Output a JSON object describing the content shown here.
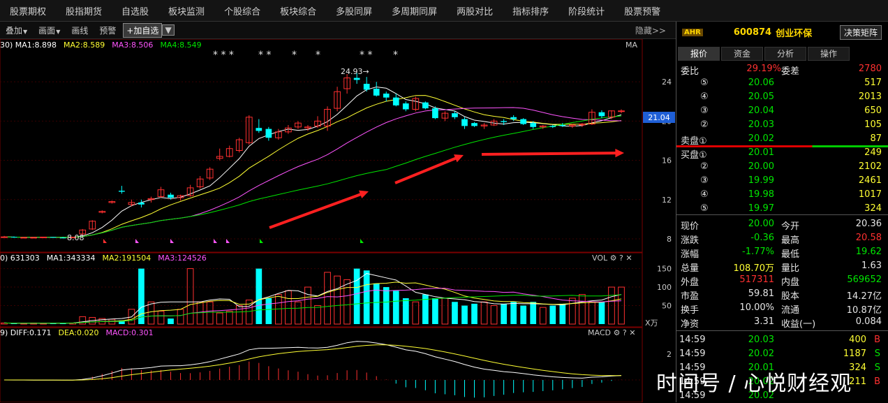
{
  "nav": [
    "股票期权",
    "股指期货",
    "自选股",
    "板块监测",
    "个股综合",
    "板块综合",
    "多股同屏",
    "多周期同屏",
    "两股对比",
    "指标排序",
    "阶段统计",
    "股票预警"
  ],
  "toolbar": {
    "overlay": "叠加",
    "draw_mode": "画面",
    "draw_line": "画线",
    "alert": "预警",
    "add_fav": "+加自选",
    "hide": "隐藏>>"
  },
  "main_chart": {
    "legend": [
      {
        "text": "30) MA1:8.898",
        "color": "#ffffff"
      },
      {
        "text": "MA2:8.589",
        "color": "#ffff33"
      },
      {
        "text": "MA3:8.506",
        "color": "#ff55ff"
      },
      {
        "text": "MA4:8.549",
        "color": "#00e600"
      }
    ],
    "ma_label": "MA",
    "stars": [
      "* * *",
      "* *",
      "*",
      "*",
      "* *",
      "*"
    ],
    "high_label": "24.93→",
    "low_label": "8.08",
    "y_ticks": [
      "24",
      "20",
      "16",
      "12",
      "8"
    ],
    "price_tag": "21.04"
  },
  "vol_chart": {
    "legend": [
      {
        "text": "0) 631303",
        "color": "#ffffff"
      },
      {
        "text": "MA1:343334",
        "color": "#ffffff"
      },
      {
        "text": "MA2:191504",
        "color": "#ffff33"
      },
      {
        "text": "MA3:124526",
        "color": "#ff55ff"
      }
    ],
    "label": "VOL",
    "y_ticks": [
      "150",
      "100",
      "50"
    ],
    "unit": "X万"
  },
  "macd_chart": {
    "legend": [
      {
        "text": "9) DIFF:0.171",
        "color": "#ffffff"
      },
      {
        "text": "DEA:0.020",
        "color": "#ffff33"
      },
      {
        "text": "MACD:0.301",
        "color": "#ff55ff"
      }
    ],
    "label": "MACD",
    "y_ticks": [
      "2"
    ]
  },
  "stock": {
    "badge": "AHR",
    "code": "600874",
    "name": "创业环保",
    "matrix": "决策矩阵"
  },
  "tabs": [
    "报价",
    "资金",
    "分析",
    "操作"
  ],
  "weibi": {
    "label": "委比",
    "value": "29.19%",
    "diff_label": "委差",
    "diff": "2780"
  },
  "sell": [
    {
      "lvl": "⑤",
      "price": "20.06",
      "vol": "517"
    },
    {
      "lvl": "④",
      "price": "20.05",
      "vol": "2013"
    },
    {
      "lvl": "③",
      "price": "20.04",
      "vol": "650"
    },
    {
      "lvl": "②",
      "price": "20.03",
      "vol": "105"
    },
    {
      "lvl": "卖盘①",
      "price": "20.02",
      "vol": "87"
    }
  ],
  "buy": [
    {
      "lvl": "买盘①",
      "price": "20.01",
      "vol": "249"
    },
    {
      "lvl": "②",
      "price": "20.00",
      "vol": "2102"
    },
    {
      "lvl": "③",
      "price": "19.99",
      "vol": "2461"
    },
    {
      "lvl": "④",
      "price": "19.98",
      "vol": "1017"
    },
    {
      "lvl": "⑤",
      "price": "19.97",
      "vol": "324"
    }
  ],
  "stats": [
    {
      "l1": "现价",
      "v1": "20.00",
      "c1": "green",
      "l2": "今开",
      "v2": "20.36",
      "c2": "white"
    },
    {
      "l1": "涨跌",
      "v1": "-0.36",
      "c1": "green",
      "l2": "最高",
      "v2": "20.58",
      "c2": "red"
    },
    {
      "l1": "涨幅",
      "v1": "-1.77%",
      "c1": "green",
      "l2": "最低",
      "v2": "19.62",
      "c2": "green"
    },
    {
      "l1": "总量",
      "v1": "108.70万",
      "c1": "yellow",
      "l2": "量比",
      "v2": "1.63",
      "c2": "white"
    },
    {
      "l1": "外盘",
      "v1": "517311",
      "c1": "red",
      "l2": "内盘",
      "v2": "569652",
      "c2": "green"
    },
    {
      "l1": "市盈",
      "v1": "59.81",
      "c1": "white",
      "l2": "股本",
      "v2": "14.27亿",
      "c2": "white"
    },
    {
      "l1": "换手",
      "v1": "10.00%",
      "c1": "white",
      "l2": "流通",
      "v2": "10.87亿",
      "c2": "white"
    },
    {
      "l1": "净资",
      "v1": "3.31",
      "c1": "white",
      "l2": "收益(一)",
      "v2": "0.084",
      "c2": "white"
    }
  ],
  "ticks": [
    {
      "time": "14:59",
      "price": "20.03",
      "vol": "400",
      "side": "B"
    },
    {
      "time": "14:59",
      "price": "20.02",
      "vol": "1187",
      "side": "S"
    },
    {
      "time": "14:59",
      "price": "20.01",
      "vol": "324",
      "side": "S"
    },
    {
      "time": "14:59",
      "price": "20.02",
      "vol": "211",
      "side": "B"
    },
    {
      "time": "14:59",
      "price": "20.02",
      "vol": "",
      "side": ""
    }
  ],
  "watermark": "时间号 / 心悦财经观",
  "chart_data": {
    "type": "candlestick",
    "candles": [
      [
        8.2,
        8.3,
        8.1,
        8.2
      ],
      [
        8.2,
        8.25,
        8.1,
        8.15
      ],
      [
        8.15,
        8.2,
        8.1,
        8.15
      ],
      [
        8.1,
        8.2,
        8.08,
        8.15
      ],
      [
        8.15,
        8.2,
        8.1,
        8.18
      ],
      [
        8.18,
        8.2,
        8.1,
        8.12
      ],
      [
        8.12,
        8.2,
        8.08,
        8.1
      ],
      [
        8.1,
        8.2,
        8.08,
        8.18
      ],
      [
        8.5,
        9.0,
        8.4,
        8.9
      ],
      [
        9.0,
        9.9,
        8.9,
        9.8
      ],
      [
        10.7,
        10.9,
        10.6,
        10.8
      ],
      [
        11.7,
        11.9,
        11.6,
        11.8
      ],
      [
        12.9,
        13.4,
        12.6,
        12.8
      ],
      [
        11.5,
        12.0,
        11.3,
        11.7
      ],
      [
        11.7,
        12.0,
        11.2,
        11.5
      ],
      [
        12.0,
        12.3,
        11.7,
        12.1
      ],
      [
        12.3,
        13.3,
        12.2,
        13.0
      ],
      [
        12.5,
        12.7,
        12.0,
        12.2
      ],
      [
        12.2,
        12.5,
        11.9,
        12.4
      ],
      [
        12.4,
        13.5,
        12.3,
        13.2
      ],
      [
        13.3,
        14.4,
        13.1,
        14.1
      ],
      [
        14.2,
        15.3,
        14.0,
        15.1
      ],
      [
        16.2,
        17.2,
        16.0,
        16.4
      ],
      [
        16.4,
        17.5,
        16.3,
        17.2
      ],
      [
        17.0,
        18.3,
        16.8,
        18.1
      ],
      [
        17.8,
        20.6,
        17.6,
        20.4
      ],
      [
        19.3,
        20.2,
        18.8,
        19.0
      ],
      [
        19.2,
        19.4,
        18.0,
        18.3
      ],
      [
        18.3,
        19.2,
        18.1,
        18.9
      ],
      [
        18.9,
        19.6,
        18.7,
        19.3
      ],
      [
        19.4,
        20.0,
        19.2,
        19.8
      ],
      [
        19.3,
        19.6,
        19.0,
        19.4
      ],
      [
        19.5,
        20.5,
        19.3,
        20.0
      ],
      [
        19.5,
        21.5,
        19.0,
        21.2
      ],
      [
        21.3,
        23.5,
        21.0,
        23.0
      ],
      [
        23.3,
        24.8,
        22.8,
        24.4
      ],
      [
        24.4,
        24.93,
        23.8,
        24.2
      ],
      [
        23.8,
        24.5,
        23.0,
        23.2
      ],
      [
        23.3,
        24.0,
        22.5,
        22.6
      ],
      [
        22.8,
        23.0,
        22.0,
        22.4
      ],
      [
        22.4,
        22.8,
        21.5,
        21.6
      ],
      [
        21.8,
        22.0,
        21.0,
        21.2
      ],
      [
        21.2,
        22.5,
        21.0,
        22.3
      ],
      [
        21.9,
        22.0,
        21.2,
        21.3
      ],
      [
        21.3,
        21.5,
        20.2,
        20.3
      ],
      [
        20.3,
        21.0,
        20.0,
        20.8
      ],
      [
        20.8,
        21.0,
        20.2,
        20.4
      ],
      [
        20.2,
        20.4,
        19.2,
        19.5
      ],
      [
        19.8,
        19.9,
        19.4,
        19.5
      ],
      [
        19.5,
        19.8,
        19.2,
        19.6
      ],
      [
        19.6,
        20.2,
        19.5,
        20.0
      ],
      [
        20.0,
        20.2,
        19.6,
        19.9
      ],
      [
        20.4,
        20.6,
        20.0,
        20.2
      ],
      [
        20.2,
        20.3,
        19.6,
        19.7
      ],
      [
        19.8,
        20.0,
        19.2,
        19.4
      ],
      [
        19.4,
        19.6,
        19.2,
        19.5
      ],
      [
        19.5,
        19.6,
        19.3,
        19.4
      ],
      [
        19.6,
        19.8,
        19.4,
        19.5
      ],
      [
        19.5,
        19.7,
        19.3,
        19.6
      ],
      [
        19.6,
        19.8,
        19.4,
        19.7
      ],
      [
        19.7,
        21.2,
        19.6,
        20.9
      ],
      [
        20.9,
        21.1,
        20.3,
        20.5
      ],
      [
        20.4,
        21.1,
        20.2,
        21.04
      ],
      [
        21.0,
        21.2,
        20.8,
        21.04
      ]
    ],
    "volumes": [
      3,
      2,
      2,
      3,
      2,
      3,
      3,
      3,
      20,
      18,
      15,
      13,
      10,
      40,
      150,
      60,
      35,
      15,
      40,
      150,
      60,
      60,
      30,
      35,
      50,
      65,
      150,
      70,
      80,
      90,
      60,
      100,
      50,
      140,
      130,
      120,
      150,
      145,
      110,
      100,
      90,
      70,
      60,
      80,
      70,
      70,
      60,
      50,
      55,
      60,
      50,
      55,
      60,
      50,
      60,
      45,
      50,
      55,
      70,
      80,
      60,
      60,
      100,
      100
    ],
    "y_range": [
      7,
      27
    ]
  }
}
